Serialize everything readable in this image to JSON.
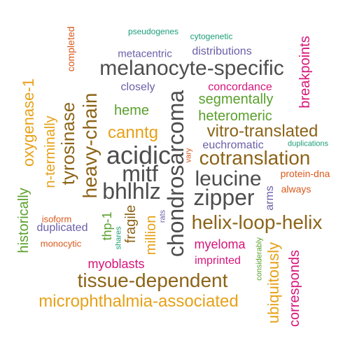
{
  "colors": {
    "dark": "#4d4d4d",
    "brown": "#8c6418",
    "gold": "#e6a117",
    "green": "#5aa02c",
    "purple": "#6a5fa8",
    "magenta": "#d6157a",
    "orange": "#d9591b",
    "teal": "#1b9e77"
  },
  "words": [
    {
      "text": "pseudogenes",
      "color": "teal"
    },
    {
      "text": "cytogenetic",
      "color": "teal"
    },
    {
      "text": "metacentric",
      "color": "purple"
    },
    {
      "text": "distributions",
      "color": "purple"
    },
    {
      "text": "completed",
      "color": "orange"
    },
    {
      "text": "breakpoints",
      "color": "magenta"
    },
    {
      "text": "melanocyte-specific",
      "color": "dark"
    },
    {
      "text": "oxygenase-1",
      "color": "gold"
    },
    {
      "text": "closely",
      "color": "purple"
    },
    {
      "text": "concordance",
      "color": "magenta"
    },
    {
      "text": "segmentally",
      "color": "green"
    },
    {
      "text": "chondrosarcoma",
      "color": "dark"
    },
    {
      "text": "heavy-chain",
      "color": "brown"
    },
    {
      "text": "tyrosinase",
      "color": "brown"
    },
    {
      "text": "heme",
      "color": "green"
    },
    {
      "text": "heteromeric",
      "color": "green"
    },
    {
      "text": "n-terminally",
      "color": "gold"
    },
    {
      "text": "canntg",
      "color": "gold"
    },
    {
      "text": "vitro-translated",
      "color": "brown"
    },
    {
      "text": "euchromatic",
      "color": "purple"
    },
    {
      "text": "duplications",
      "color": "teal"
    },
    {
      "text": "acidic",
      "color": "dark"
    },
    {
      "text": "cotranslation",
      "color": "brown"
    },
    {
      "text": "vary",
      "color": "orange"
    },
    {
      "text": "mitf",
      "color": "dark"
    },
    {
      "text": "leucine",
      "color": "dark"
    },
    {
      "text": "protein-dna",
      "color": "orange"
    },
    {
      "text": "bhlhlz",
      "color": "dark"
    },
    {
      "text": "zipper",
      "color": "dark"
    },
    {
      "text": "always",
      "color": "orange"
    },
    {
      "text": "arms",
      "color": "purple"
    },
    {
      "text": "historically",
      "color": "green"
    },
    {
      "text": "thp-1",
      "color": "green"
    },
    {
      "text": "rats",
      "color": "purple"
    },
    {
      "text": "helix-loop-helix",
      "color": "brown"
    },
    {
      "text": "isoform",
      "color": "orange"
    },
    {
      "text": "fragile",
      "color": "brown"
    },
    {
      "text": "shares",
      "color": "teal"
    },
    {
      "text": "million",
      "color": "gold"
    },
    {
      "text": "duplicated",
      "color": "purple"
    },
    {
      "text": "myeloma",
      "color": "magenta"
    },
    {
      "text": "monocytic",
      "color": "orange"
    },
    {
      "text": "considerably",
      "color": "green"
    },
    {
      "text": "ubiquitously",
      "color": "gold"
    },
    {
      "text": "corresponds",
      "color": "magenta"
    },
    {
      "text": "imprinted",
      "color": "magenta"
    },
    {
      "text": "myoblasts",
      "color": "magenta"
    },
    {
      "text": "tissue-dependent",
      "color": "brown"
    },
    {
      "text": "microphthalmia-associated",
      "color": "gold"
    }
  ]
}
